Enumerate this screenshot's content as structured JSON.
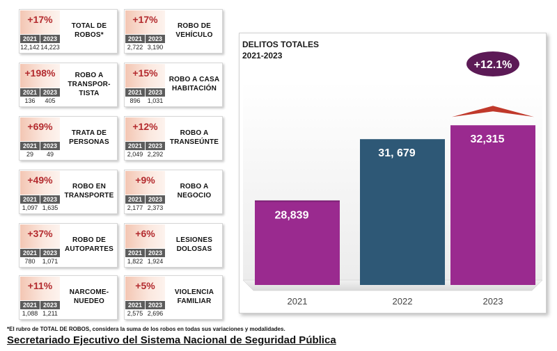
{
  "cards": [
    {
      "pct": "+17%",
      "label": "TOTAL DE\nROBOS*",
      "y2021": "12,142",
      "y2023": "14,223"
    },
    {
      "pct": "+17%",
      "label": "ROBO DE\nVEHÍCULO",
      "y2021": "2,722",
      "y2023": "3,190"
    },
    {
      "pct": "+198%",
      "label": "ROBO A\nTRANSPOR-\nTISTA",
      "y2021": "136",
      "y2023": "405"
    },
    {
      "pct": "+15%",
      "label": "ROBO A CASA\nHABITACIÓN",
      "y2021": "896",
      "y2023": "1,031"
    },
    {
      "pct": "+69%",
      "label": "TRATA DE\nPERSONAS",
      "y2021": "29",
      "y2023": "49"
    },
    {
      "pct": "+12%",
      "label": "ROBO A\nTRANSEÚNTE",
      "y2021": "2,049",
      "y2023": "2,292"
    },
    {
      "pct": "+49%",
      "label": "ROBO EN\nTRANSPORTE",
      "y2021": "1,097",
      "y2023": "1,635"
    },
    {
      "pct": "+9%",
      "label": "ROBO A\nNEGOCIO",
      "y2021": "2,177",
      "y2023": "2,373"
    },
    {
      "pct": "+37%",
      "label": "ROBO DE\nAUTOPARTES",
      "y2021": "780",
      "y2023": "1,071"
    },
    {
      "pct": "+6%",
      "label": "LESIONES\nDOLOSAS",
      "y2021": "1,822",
      "y2023": "1,924"
    },
    {
      "pct": "+11%",
      "label": "NARCOME-\nNUEDEO",
      "y2021": "1,088",
      "y2023": "1,211"
    },
    {
      "pct": "+5%",
      "label": "VIOLENCIA\nFAMILIAR",
      "y2021": "2,575",
      "y2023": "2,696"
    }
  ],
  "year_labels": {
    "a": "2021",
    "b": "2023"
  },
  "chart_data": {
    "type": "bar",
    "title": "DELITOS TOTALES\n2021-2023",
    "categories": [
      "2021",
      "2022",
      "2023"
    ],
    "values": [
      28839,
      31679,
      32315
    ],
    "value_labels": [
      "28,839",
      "31, 679",
      "32,315"
    ],
    "colors": [
      "#9a2a8f",
      "#2e5876",
      "#9a2a8f"
    ],
    "ylim": [
      25000,
      33500
    ],
    "change_label": "+12.1%",
    "change_color": "#5c1a56",
    "arrow_color": "#c0392b"
  },
  "footnote": "*El rubro de TOTAL DE ROBOS, considera la suma de los robos en todas sus variaciones y modalidades.",
  "source": "Secretariado Ejecutivo del Sistema Nacional de Seguridad Pública"
}
